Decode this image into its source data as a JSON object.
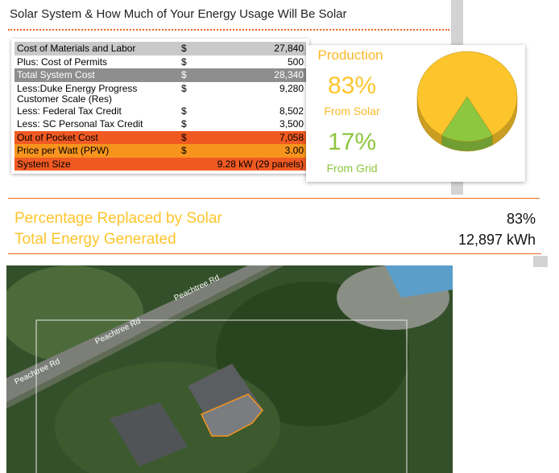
{
  "header": {
    "title": "Solar System & How Much of Your Energy Usage Will Be Solar"
  },
  "table": {
    "rows": [
      [
        "Cost of Materials and Labor",
        "$",
        "27,840"
      ],
      [
        "Plus: Cost of Permits",
        "$",
        "500"
      ],
      [
        "Total System Cost",
        "$",
        "28,340"
      ],
      [
        "Less:Duke Energy Progress Customer Scale (Res)",
        "$",
        "9,280"
      ],
      [
        "Less: Federal Tax Credit",
        "$",
        "8,502"
      ],
      [
        "Less: SC Personal Tax Credit",
        "$",
        "3,500"
      ],
      [
        "Out of Pocket Cost",
        "$",
        "7,058"
      ],
      [
        "Price per Watt (PPW)",
        "$",
        "3.00"
      ],
      [
        "System Size",
        "9.28 kW (29 panels)"
      ]
    ]
  },
  "production": {
    "title": "Production",
    "type": "pie",
    "categories": [
      "From Solar",
      "From Grid"
    ],
    "values": [
      83,
      17
    ],
    "value_labels": [
      "83%",
      "17%"
    ],
    "colors": [
      "#fdc52c",
      "#8dc63f"
    ]
  },
  "summary": {
    "rows": [
      [
        "Percentage Replaced by Solar",
        "83%"
      ],
      [
        "Total Energy Generated",
        "12,897 kWh"
      ]
    ]
  },
  "map": {
    "road_labels": [
      "Peachtree Rd",
      "Peachtree Rd",
      "Peachtree Rd"
    ]
  }
}
